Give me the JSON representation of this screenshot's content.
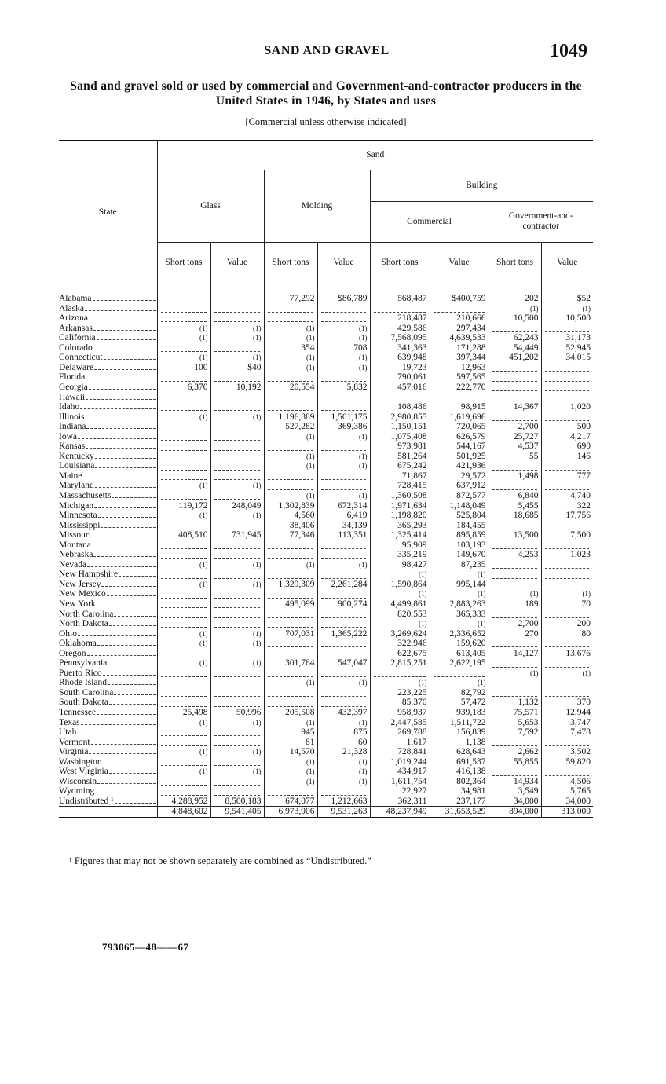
{
  "header": {
    "section": "SAND AND GRAVEL",
    "page": "1049"
  },
  "title": "Sand and gravel sold or used by commercial and Government-and-contractor producers in the United States in 1946, by States and uses",
  "subtitle": "[Commercial unless otherwise indicated]",
  "table": {
    "columns": {
      "state": "State",
      "sand": "Sand",
      "glass": "Glass",
      "molding": "Molding",
      "building": "Building",
      "commercial": "Commercial",
      "government": "Government-and-contractor"
    },
    "subheaders": [
      "Short tons",
      "Value",
      "Short tons",
      "Value",
      "Short tons",
      "Value",
      "Short tons",
      "Value"
    ],
    "rows": [
      [
        "Alabama",
        null,
        null,
        "77,292",
        "$86,789",
        "568,487",
        "$400,759",
        "202",
        "$52"
      ],
      [
        "Alaska",
        null,
        null,
        null,
        null,
        null,
        null,
        "(1)",
        "(1)"
      ],
      [
        "Arizona",
        null,
        null,
        null,
        null,
        "218,487",
        "210,666",
        "10,500",
        "10,500"
      ],
      [
        "Arkansas",
        "(1)",
        "(1)",
        "(1)",
        "(1)",
        "429,586",
        "297,434",
        null,
        null
      ],
      [
        "California",
        "(1)",
        "(1)",
        "(1)",
        "(1)",
        "7,568,095",
        "4,639,533",
        "62,243",
        "31,173"
      ],
      [
        "Colorado",
        null,
        null,
        "354",
        "708",
        "341,363",
        "171,288",
        "54,449",
        "52,945"
      ],
      [
        "Connecticut",
        "(1)",
        "(1)",
        "(1)",
        "(1)",
        "639,948",
        "397,344",
        "451,202",
        "34,015"
      ],
      [
        "Delaware",
        "100",
        "$40",
        "(1)",
        "(1)",
        "19,723",
        "12,963",
        null,
        null
      ],
      [
        "Florida",
        null,
        null,
        null,
        null,
        "790,061",
        "597,565",
        null,
        null
      ],
      [
        "Georgia",
        "6,370",
        "10,192",
        "20,554",
        "5,832",
        "457,016",
        "222,770",
        null,
        null
      ],
      [
        "Hawaii",
        null,
        null,
        null,
        null,
        null,
        null,
        null,
        null
      ],
      [
        "Idaho",
        null,
        null,
        null,
        null,
        "108,486",
        "98,915",
        "14,367",
        "1,020"
      ],
      [
        "Illinois",
        "(1)",
        "(1)",
        "1,196,889",
        "1,501,175",
        "2,980,855",
        "1,619,696",
        null,
        null
      ],
      [
        "Indiana",
        null,
        null,
        "527,282",
        "369,386",
        "1,150,151",
        "720,065",
        "2,700",
        "500"
      ],
      [
        "Iowa",
        null,
        null,
        "(1)",
        "(1)",
        "1,075,408",
        "626,579",
        "25,727",
        "4,217"
      ],
      [
        "Kansas",
        null,
        null,
        null,
        null,
        "973,981",
        "544,167",
        "4,537",
        "690"
      ],
      [
        "Kentucky",
        null,
        null,
        "(1)",
        "(1)",
        "581,264",
        "501,925",
        "55",
        "146"
      ],
      [
        "Louisiana",
        null,
        null,
        "(1)",
        "(1)",
        "675,242",
        "421,936",
        null,
        null
      ],
      [
        "Maine",
        null,
        null,
        null,
        null,
        "71,867",
        "29,572",
        "1,498",
        "777"
      ],
      [
        "Maryland",
        "(1)",
        "(1)",
        null,
        null,
        "728,415",
        "637,912",
        null,
        null
      ],
      [
        "Massachusetts",
        null,
        null,
        "(1)",
        "(1)",
        "1,360,508",
        "872,577",
        "6,840",
        "4,740"
      ],
      [
        "Michigan",
        "119,172",
        "248,049",
        "1,302,839",
        "672,314",
        "1,971,634",
        "1,148,049",
        "5,455",
        "322"
      ],
      [
        "Minnesota",
        "(1)",
        "(1)",
        "4,560",
        "6,419",
        "1,198,820",
        "525,804",
        "18,685",
        "17,756"
      ],
      [
        "Mississippi",
        null,
        null,
        "38,406",
        "34,139",
        "365,293",
        "184,455",
        null,
        null
      ],
      [
        "Missouri",
        "408,510",
        "731,945",
        "77,346",
        "113,351",
        "1,325,414",
        "895,859",
        "13,500",
        "7,500"
      ],
      [
        "Montana",
        null,
        null,
        null,
        null,
        "95,909",
        "103,193",
        null,
        null
      ],
      [
        "Nebraska",
        null,
        null,
        null,
        null,
        "335,219",
        "149,670",
        "4,253",
        "1,023"
      ],
      [
        "Nevada",
        "(1)",
        "(1)",
        "(1)",
        "(1)",
        "98,427",
        "87,235",
        null,
        null
      ],
      [
        "New Hampshire",
        null,
        null,
        null,
        null,
        "(1)",
        "(1)",
        null,
        null
      ],
      [
        "New Jersey",
        "(1)",
        "(1)",
        "1,329,309",
        "2,261,284",
        "1,590,864",
        "995,144",
        null,
        null
      ],
      [
        "New Mexico",
        null,
        null,
        null,
        null,
        "(1)",
        "(1)",
        "(1)",
        "(1)"
      ],
      [
        "New York",
        null,
        null,
        "495,099",
        "900,274",
        "4,499,861",
        "2,883,263",
        "189",
        "70"
      ],
      [
        "North Carolina",
        null,
        null,
        null,
        null,
        "820,553",
        "365,333",
        null,
        null
      ],
      [
        "North Dakota",
        null,
        null,
        null,
        null,
        "(1)",
        "(1)",
        "2,700",
        "200"
      ],
      [
        "Ohio",
        "(1)",
        "(1)",
        "707,031",
        "1,365,222",
        "3,269,624",
        "2,336,652",
        "270",
        "80"
      ],
      [
        "Oklahoma",
        "(1)",
        "(1)",
        null,
        null,
        "322,946",
        "159,620",
        null,
        null
      ],
      [
        "Oregon",
        null,
        null,
        null,
        null,
        "622,675",
        "613,405",
        "14,127",
        "13,676"
      ],
      [
        "Pennsylvania",
        "(1)",
        "(1)",
        "301,764",
        "547,047",
        "2,815,251",
        "2,622,195",
        null,
        null
      ],
      [
        "Puerto Rico",
        null,
        null,
        null,
        null,
        null,
        null,
        "(1)",
        "(1)"
      ],
      [
        "Rhode Island",
        null,
        null,
        "(1)",
        "(1)",
        "(1)",
        "(1)",
        null,
        null
      ],
      [
        "South Carolina",
        null,
        null,
        null,
        null,
        "223,225",
        "82,792",
        null,
        null
      ],
      [
        "South Dakota",
        null,
        null,
        null,
        null,
        "85,370",
        "57,472",
        "1,132",
        "370"
      ],
      [
        "Tennessee",
        "25,498",
        "50,996",
        "205,508",
        "432,397",
        "958,937",
        "939,183",
        "75,571",
        "12,944"
      ],
      [
        "Texas",
        "(1)",
        "(1)",
        "(1)",
        "(1)",
        "2,447,585",
        "1,511,722",
        "5,653",
        "3,747"
      ],
      [
        "Utah",
        null,
        null,
        "945",
        "875",
        "269,788",
        "156,839",
        "7,592",
        "7,478"
      ],
      [
        "Vermont",
        null,
        null,
        "81",
        "60",
        "1,617",
        "1,138",
        null,
        null
      ],
      [
        "Virginia",
        "(1)",
        "(1)",
        "14,570",
        "21,328",
        "728,841",
        "628,643",
        "2,662",
        "3,502"
      ],
      [
        "Washington",
        null,
        null,
        "(1)",
        "(1)",
        "1,019,244",
        "691,537",
        "55,855",
        "59,820"
      ],
      [
        "West Virginia",
        "(1)",
        "(1)",
        "(1)",
        "(1)",
        "434,917",
        "416,138",
        null,
        null
      ],
      [
        "Wisconsin",
        null,
        null,
        "(1)",
        "(1)",
        "1,611,754",
        "802,364",
        "14,934",
        "4,506"
      ],
      [
        "Wyoming",
        null,
        null,
        null,
        null,
        "22,927",
        "34,981",
        "3,549",
        "5,765"
      ],
      [
        "Undistributed ¹",
        "4,288,952",
        "8,500,183",
        "674,077",
        "1,212,663",
        "362,311",
        "237,177",
        "34,000",
        "34,000"
      ]
    ],
    "total": [
      "4,848,602",
      "9,541,405",
      "6,973,906",
      "9,531,263",
      "48,237,949",
      "31,653,529",
      "894,000",
      "313,000"
    ]
  },
  "footnote": "¹ Figures that may not be shown separately are combined as “Undistributed.”",
  "imprint": "793065—48——67"
}
